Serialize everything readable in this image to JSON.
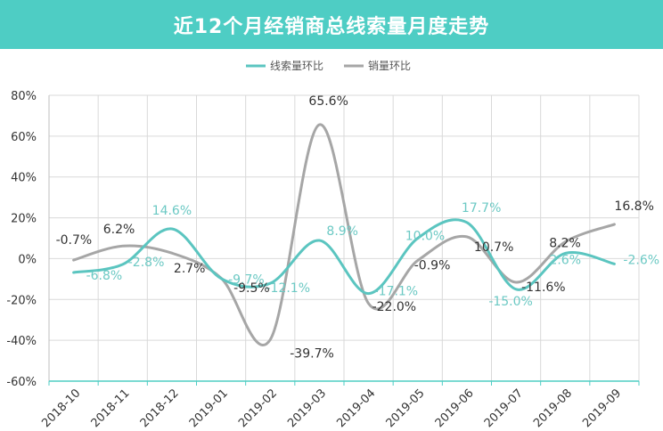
{
  "title": "近12个月经销商总线索量月度走势",
  "chart_data": {
    "type": "line",
    "title": "近12个月经销商总线索量月度走势",
    "categories": [
      "2018-10",
      "2018-11",
      "2018-12",
      "2019-01",
      "2019-02",
      "2019-03",
      "2019-04",
      "2019-05",
      "2019-06",
      "2019-07",
      "2019-08",
      "2019-09"
    ],
    "ylim": [
      -60,
      80
    ],
    "yticks": [
      -60,
      -40,
      -20,
      0,
      20,
      40,
      60,
      80
    ],
    "ytick_labels": [
      "-60%",
      "-40%",
      "-20%",
      "0%",
      "20%",
      "40%",
      "60%",
      "80%"
    ],
    "grid": true,
    "legend_position": "top",
    "series": [
      {
        "name": "线索量环比",
        "color": "#5bc5c0",
        "values": [
          -6.8,
          -2.8,
          14.6,
          -9.7,
          -12.1,
          8.9,
          -17.1,
          10.0,
          17.7,
          -15.0,
          2.6,
          -2.6
        ],
        "labels": [
          "-6.8%",
          "-2.8%",
          "14.6%",
          "-9.7%",
          "-12.1%",
          "8.9%",
          "-17.1%",
          "10.0%",
          "17.7%",
          "-15.0%",
          "2.6%",
          "-2.6%"
        ]
      },
      {
        "name": "销量环比",
        "color": "#a6a6a6",
        "values": [
          -0.7,
          6.2,
          2.7,
          -9.5,
          -39.7,
          65.6,
          -22.0,
          -0.9,
          10.7,
          -11.6,
          8.2,
          16.8
        ],
        "labels": [
          "-0.7%",
          "6.2%",
          "2.7%",
          "-9.5%",
          "-39.7%",
          "65.6%",
          "-22.0%",
          "-0.9%",
          "10.7%",
          "-11.6%",
          "8.2%",
          "16.8%"
        ]
      }
    ]
  }
}
